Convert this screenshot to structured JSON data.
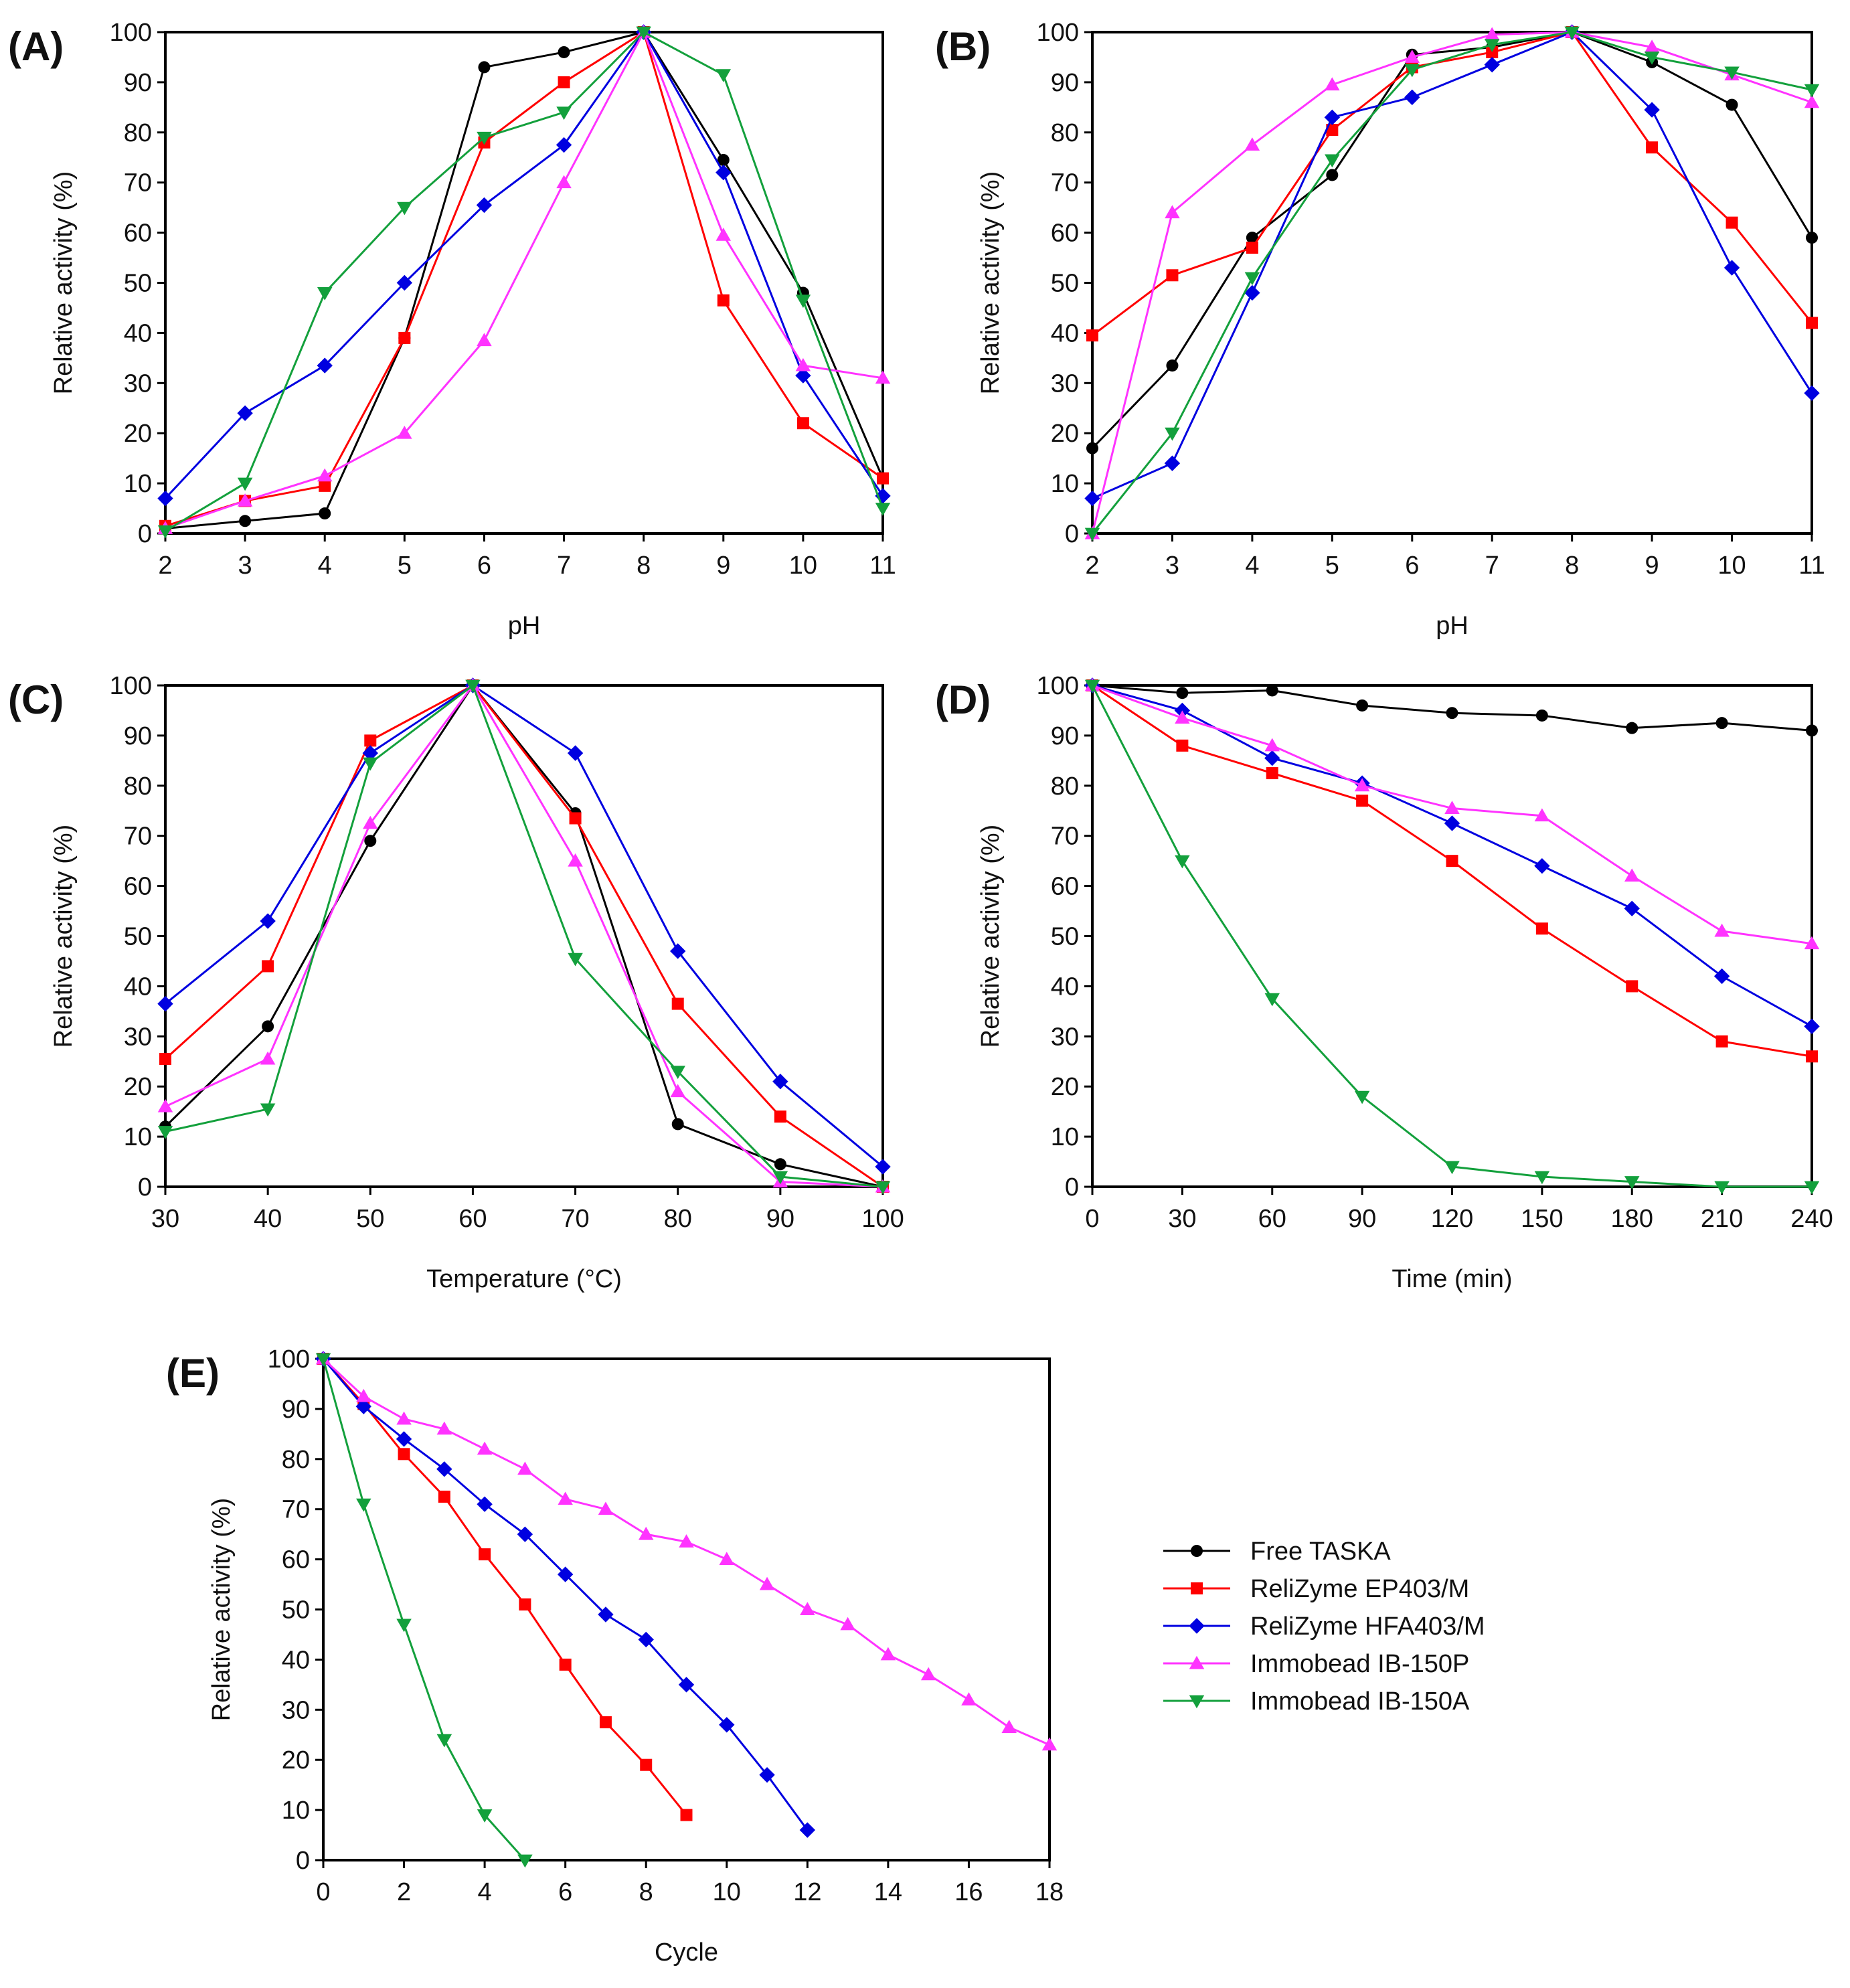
{
  "legend": [
    {
      "name": "Free TASKA",
      "color": "#000000",
      "marker": "circle"
    },
    {
      "name": "ReliZyme EP403/M",
      "color": "#ff0000",
      "marker": "square"
    },
    {
      "name": "ReliZyme HFA403/M",
      "color": "#0000e0",
      "marker": "diamond"
    },
    {
      "name": "Immobead IB-150P",
      "color": "#ff33ff",
      "marker": "triangle-up"
    },
    {
      "name": "Immobead IB-150A",
      "color": "#13a03c",
      "marker": "triangle-down"
    }
  ],
  "chart_data": [
    {
      "id": "A",
      "panel_label": "(A)",
      "type": "line",
      "xlabel": "pH",
      "ylabel": "Relative activity (%)",
      "xlim": [
        2,
        11
      ],
      "ylim": [
        0,
        100
      ],
      "xticks": [
        2,
        3,
        4,
        5,
        6,
        7,
        8,
        9,
        10,
        11
      ],
      "yticks": [
        0,
        10,
        20,
        30,
        40,
        50,
        60,
        70,
        80,
        90,
        100
      ],
      "x": [
        2,
        3,
        4,
        5,
        6,
        7,
        8,
        9,
        10,
        11
      ],
      "series": [
        {
          "name": "Free TASKA",
          "values": [
            1,
            2.5,
            4,
            39,
            93,
            96,
            100,
            74.5,
            48,
            11
          ]
        },
        {
          "name": "ReliZyme EP403/M",
          "values": [
            1.5,
            6.5,
            9.5,
            39,
            78,
            90,
            100,
            46.5,
            22,
            11
          ]
        },
        {
          "name": "ReliZyme HFA403/M",
          "values": [
            7,
            24,
            33.5,
            50,
            65.5,
            77.5,
            100,
            72,
            31.5,
            7.5
          ]
        },
        {
          "name": "Immobead IB-150P",
          "values": [
            1,
            6.5,
            11.5,
            20,
            38.5,
            70,
            100,
            59.5,
            33.5,
            31
          ]
        },
        {
          "name": "Immobead IB-150A",
          "values": [
            0.5,
            10,
            48,
            65,
            79,
            84,
            100,
            91.5,
            46.5,
            5
          ]
        }
      ]
    },
    {
      "id": "B",
      "panel_label": "(B)",
      "type": "line",
      "xlabel": "pH",
      "ylabel": "Relative activity (%)",
      "xlim": [
        2,
        11
      ],
      "ylim": [
        0,
        100
      ],
      "xticks": [
        2,
        3,
        4,
        5,
        6,
        7,
        8,
        9,
        10,
        11
      ],
      "yticks": [
        0,
        10,
        20,
        30,
        40,
        50,
        60,
        70,
        80,
        90,
        100
      ],
      "x": [
        2,
        3,
        4,
        5,
        6,
        7,
        8,
        9,
        10,
        11
      ],
      "series": [
        {
          "name": "Free TASKA",
          "values": [
            17,
            33.5,
            59,
            71.5,
            95.5,
            97,
            100,
            94,
            85.5,
            59
          ]
        },
        {
          "name": "ReliZyme EP403/M",
          "values": [
            39.5,
            51.5,
            57,
            80.5,
            93,
            96,
            100,
            77,
            62,
            42
          ]
        },
        {
          "name": "ReliZyme HFA403/M",
          "values": [
            7,
            14,
            48,
            83,
            87,
            93.5,
            100,
            84.5,
            53,
            28
          ]
        },
        {
          "name": "Immobead IB-150P",
          "values": [
            0,
            64,
            77.5,
            89.5,
            95,
            99.5,
            100,
            97,
            91.5,
            86
          ]
        },
        {
          "name": "Immobead IB-150A",
          "values": [
            0,
            20,
            51,
            74.5,
            92.5,
            97.5,
            100,
            95,
            92,
            88.5
          ]
        }
      ]
    },
    {
      "id": "C",
      "panel_label": "(C)",
      "type": "line",
      "xlabel": "Temperature (°C)",
      "ylabel": "Relative activity (%)",
      "xlim": [
        30,
        100
      ],
      "ylim": [
        0,
        100
      ],
      "xticks": [
        30,
        40,
        50,
        60,
        70,
        80,
        90,
        100
      ],
      "yticks": [
        0,
        10,
        20,
        30,
        40,
        50,
        60,
        70,
        80,
        90,
        100
      ],
      "x": [
        30,
        40,
        50,
        60,
        70,
        80,
        90,
        100
      ],
      "series": [
        {
          "name": "Free TASKA",
          "values": [
            12,
            32,
            69,
            100,
            74.5,
            12.5,
            4.5,
            0
          ]
        },
        {
          "name": "ReliZyme EP403/M",
          "values": [
            25.5,
            44,
            89,
            100,
            73.5,
            36.5,
            14,
            0
          ]
        },
        {
          "name": "ReliZyme HFA403/M",
          "values": [
            36.5,
            53,
            86.5,
            100,
            86.5,
            47,
            21,
            4
          ]
        },
        {
          "name": "Immobead IB-150P",
          "values": [
            16,
            25.5,
            72.5,
            100,
            65,
            19,
            1,
            0
          ]
        },
        {
          "name": "Immobead IB-150A",
          "values": [
            11,
            15.5,
            84.5,
            100,
            45.5,
            23,
            2,
            0
          ]
        }
      ]
    },
    {
      "id": "D",
      "panel_label": "(D)",
      "type": "line",
      "xlabel": "Time (min)",
      "ylabel": "Relative activity (%)",
      "xlim": [
        0,
        240
      ],
      "ylim": [
        0,
        100
      ],
      "xticks": [
        0,
        30,
        60,
        90,
        120,
        150,
        180,
        210,
        240
      ],
      "yticks": [
        0,
        10,
        20,
        30,
        40,
        50,
        60,
        70,
        80,
        90,
        100
      ],
      "x": [
        0,
        30,
        60,
        90,
        120,
        150,
        180,
        210,
        240
      ],
      "series": [
        {
          "name": "Free TASKA",
          "values": [
            100,
            98.5,
            99,
            96,
            94.5,
            94,
            91.5,
            92.5,
            91
          ]
        },
        {
          "name": "ReliZyme EP403/M",
          "values": [
            100,
            88,
            82.5,
            77,
            65,
            51.5,
            40,
            29,
            26
          ]
        },
        {
          "name": "ReliZyme HFA403/M",
          "values": [
            100,
            95,
            85.5,
            80.5,
            72.5,
            64,
            55.5,
            42,
            32
          ]
        },
        {
          "name": "Immobead IB-150P",
          "values": [
            100,
            93.5,
            88,
            80,
            75.5,
            74,
            62,
            51,
            48.5
          ]
        },
        {
          "name": "Immobead IB-150A",
          "values": [
            100,
            65,
            37.5,
            18,
            4,
            2,
            1,
            0,
            0
          ]
        }
      ]
    },
    {
      "id": "E",
      "panel_label": "(E)",
      "type": "line",
      "xlabel": "Cycle",
      "ylabel": "Relative activity (%)",
      "xlim": [
        0,
        18
      ],
      "ylim": [
        0,
        100
      ],
      "xticks": [
        0,
        2,
        4,
        6,
        8,
        10,
        12,
        14,
        16,
        18
      ],
      "yticks": [
        0,
        10,
        20,
        30,
        40,
        50,
        60,
        70,
        80,
        90,
        100
      ],
      "series": [
        {
          "name": "ReliZyme EP403/M",
          "x": [
            0,
            1,
            2,
            3,
            4,
            5,
            6,
            7,
            8,
            9
          ],
          "values": [
            100,
            91,
            81,
            72.5,
            61,
            51,
            39,
            27.5,
            19,
            9
          ]
        },
        {
          "name": "ReliZyme HFA403/M",
          "x": [
            0,
            1,
            2,
            3,
            4,
            5,
            6,
            7,
            8,
            9,
            10,
            11,
            12
          ],
          "values": [
            100,
            90.5,
            84,
            78,
            71,
            65,
            57,
            49,
            44,
            35,
            27,
            17,
            6
          ]
        },
        {
          "name": "Immobead IB-150P",
          "x": [
            0,
            1,
            2,
            3,
            4,
            5,
            6,
            7,
            8,
            9,
            10,
            11,
            12,
            13,
            14,
            15,
            16,
            17,
            18
          ],
          "values": [
            100,
            92.5,
            88,
            86,
            82,
            78,
            72,
            70,
            65,
            63.5,
            60,
            55,
            50,
            47,
            41,
            37,
            32,
            26.5,
            23
          ]
        },
        {
          "name": "Immobead IB-150A",
          "x": [
            0,
            1,
            2,
            3,
            4,
            5
          ],
          "values": [
            100,
            71,
            47,
            24,
            9,
            0
          ]
        }
      ]
    }
  ]
}
